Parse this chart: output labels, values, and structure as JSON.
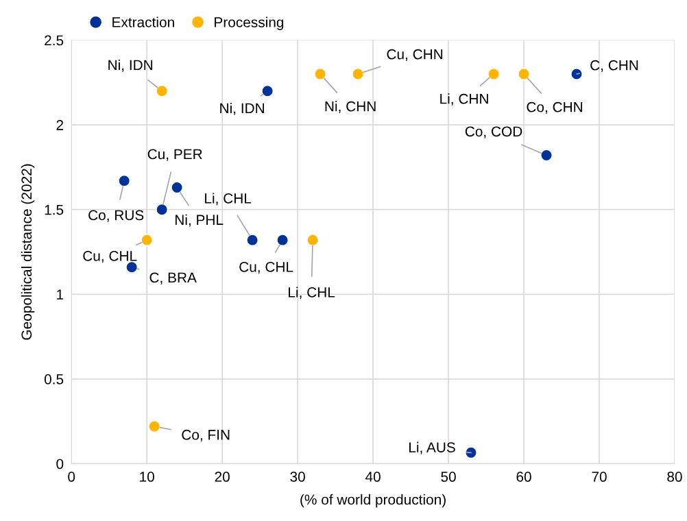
{
  "chart_data": {
    "type": "scatter",
    "xlabel": "(% of world production)",
    "ylabel": "Geopolitical distance (2022)",
    "xlim": [
      0,
      80
    ],
    "xticks": [
      0,
      10,
      20,
      30,
      40,
      50,
      60,
      70,
      80
    ],
    "ylim": [
      0,
      2.5
    ],
    "yticks": [
      0,
      0.5,
      1,
      1.5,
      2,
      2.5
    ],
    "grid": true,
    "legend": "top left",
    "marker": "circle",
    "series": [
      {
        "name": "Extraction",
        "color": "#003299",
        "x": [
          67,
          63,
          53,
          26,
          7,
          14,
          12,
          24,
          28,
          8
        ],
        "values": [
          2.3,
          1.82,
          0.065,
          2.2,
          1.67,
          1.63,
          1.5,
          1.32,
          1.32,
          1.16
        ]
      },
      {
        "name": "Processing",
        "color": "#ffb400",
        "x": [
          12,
          33,
          38,
          56,
          60,
          10,
          32,
          11
        ],
        "values": [
          2.2,
          2.3,
          2.3,
          2.3,
          2.3,
          1.32,
          1.32,
          0.22
        ]
      }
    ],
    "annotations": [
      {
        "text": "C, CHN",
        "x": 67,
        "y": 2.3
      },
      {
        "text": "Co, COD",
        "x": 63,
        "y": 1.82
      },
      {
        "text": "Li, AUS",
        "x": 53,
        "y": 0.065
      },
      {
        "text": "Ni, IDN",
        "x": 26,
        "y": 2.2
      },
      {
        "text": "Co, RUS",
        "x": 7,
        "y": 1.67
      },
      {
        "text": "Ni, PHL",
        "x": 14,
        "y": 1.63
      },
      {
        "text": "Cu, PER",
        "x": 12,
        "y": 1.5
      },
      {
        "text": "Li, CHL",
        "x": 24,
        "y": 1.32
      },
      {
        "text": "Cu, CHL",
        "x": 28,
        "y": 1.32
      },
      {
        "text": "C, BRA",
        "x": 8,
        "y": 1.16
      },
      {
        "text": "Ni, IDN",
        "x": 12,
        "y": 2.2
      },
      {
        "text": "Ni, CHN",
        "x": 33,
        "y": 2.3
      },
      {
        "text": "Cu, CHN",
        "x": 38,
        "y": 2.3
      },
      {
        "text": "Li, CHN",
        "x": 56,
        "y": 2.3
      },
      {
        "text": "Co, CHN",
        "x": 60,
        "y": 2.3
      },
      {
        "text": "Cu, CHL",
        "x": 10,
        "y": 1.32
      },
      {
        "text": "Li, CHL",
        "x": 32,
        "y": 1.32
      },
      {
        "text": "Co, FIN",
        "x": 11,
        "y": 0.22
      }
    ]
  }
}
